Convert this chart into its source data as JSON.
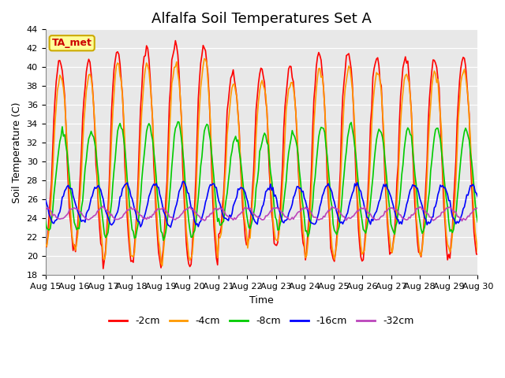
{
  "title": "Alfalfa Soil Temperatures Set A",
  "xlabel": "Time",
  "ylabel": "Soil Temperature (C)",
  "ylim": [
    18,
    44
  ],
  "xtick_labels": [
    "Aug 15",
    "Aug 16",
    "Aug 17",
    "Aug 18",
    "Aug 19",
    "Aug 20",
    "Aug 21",
    "Aug 22",
    "Aug 23",
    "Aug 24",
    "Aug 25",
    "Aug 26",
    "Aug 27",
    "Aug 28",
    "Aug 29",
    "Aug 30"
  ],
  "legend_entries": [
    "-2cm",
    "-4cm",
    "-8cm",
    "-16cm",
    "-32cm"
  ],
  "line_colors": [
    "#ff0000",
    "#ff9900",
    "#00cc00",
    "#0000ff",
    "#bb44bb"
  ],
  "bg_color": "#e8e8e8",
  "annotation_text": "TA_met",
  "annotation_facecolor": "#ffff99",
  "annotation_edgecolor": "#ccaa00",
  "annotation_textcolor": "#cc0000",
  "title_fontsize": 13,
  "axis_label_fontsize": 9,
  "tick_fontsize": 8,
  "legend_fontsize": 9
}
